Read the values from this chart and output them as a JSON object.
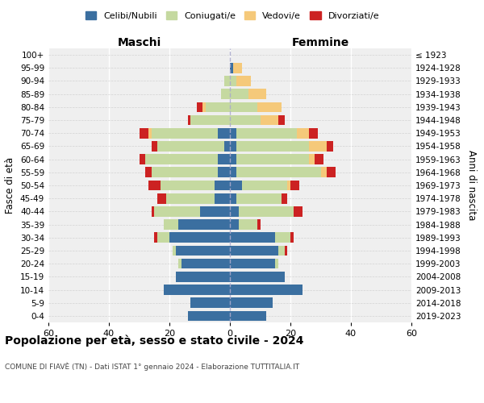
{
  "age_groups": [
    "0-4",
    "5-9",
    "10-14",
    "15-19",
    "20-24",
    "25-29",
    "30-34",
    "35-39",
    "40-44",
    "45-49",
    "50-54",
    "55-59",
    "60-64",
    "65-69",
    "70-74",
    "75-79",
    "80-84",
    "85-89",
    "90-94",
    "95-99",
    "100+"
  ],
  "birth_years": [
    "2019-2023",
    "2014-2018",
    "2009-2013",
    "2004-2008",
    "1999-2003",
    "1994-1998",
    "1989-1993",
    "1984-1988",
    "1979-1983",
    "1974-1978",
    "1969-1973",
    "1964-1968",
    "1959-1963",
    "1954-1958",
    "1949-1953",
    "1944-1948",
    "1939-1943",
    "1934-1938",
    "1929-1933",
    "1924-1928",
    "≤ 1923"
  ],
  "colors": {
    "celibi": "#3b6fa0",
    "coniugati": "#c5d9a0",
    "vedovi": "#f5c97a",
    "divorziati": "#cc2222"
  },
  "maschi": {
    "celibi": [
      14,
      13,
      22,
      18,
      16,
      18,
      20,
      17,
      10,
      5,
      5,
      4,
      4,
      2,
      4,
      0,
      0,
      0,
      0,
      0,
      0
    ],
    "coniugati": [
      0,
      0,
      0,
      0,
      1,
      1,
      4,
      5,
      15,
      16,
      18,
      22,
      24,
      22,
      22,
      13,
      8,
      3,
      2,
      0,
      0
    ],
    "vedovi": [
      0,
      0,
      0,
      0,
      0,
      0,
      0,
      0,
      0,
      0,
      0,
      0,
      0,
      0,
      1,
      0,
      1,
      0,
      0,
      0,
      0
    ],
    "divorziati": [
      0,
      0,
      0,
      0,
      0,
      0,
      1,
      0,
      1,
      3,
      4,
      2,
      2,
      2,
      3,
      1,
      2,
      0,
      0,
      0,
      0
    ]
  },
  "femmine": {
    "nubili": [
      12,
      14,
      24,
      18,
      15,
      16,
      15,
      3,
      3,
      2,
      4,
      2,
      2,
      2,
      2,
      0,
      0,
      0,
      0,
      1,
      0
    ],
    "coniugate": [
      0,
      0,
      0,
      0,
      1,
      2,
      5,
      6,
      18,
      15,
      15,
      28,
      24,
      24,
      20,
      10,
      9,
      6,
      2,
      0,
      0
    ],
    "vedove": [
      0,
      0,
      0,
      0,
      0,
      0,
      0,
      0,
      0,
      0,
      1,
      2,
      2,
      6,
      4,
      6,
      8,
      6,
      5,
      3,
      0
    ],
    "divorziate": [
      0,
      0,
      0,
      0,
      0,
      1,
      1,
      1,
      3,
      2,
      3,
      3,
      3,
      2,
      3,
      2,
      0,
      0,
      0,
      0,
      0
    ]
  },
  "xlim": 60,
  "title_main": "Popolazione per età, sesso e stato civile - 2024",
  "title_sub": "COMUNE DI FIAVÈ (TN) - Dati ISTAT 1° gennaio 2024 - Elaborazione TUTTITALIA.IT",
  "ylabel_left": "Fasce di età",
  "ylabel_right": "Anni di nascita",
  "xlabel_left": "Maschi",
  "xlabel_right": "Femmine",
  "bg_color": "#efefef",
  "legend_labels": [
    "Celibi/Nubili",
    "Coniugati/e",
    "Vedovi/e",
    "Divorziati/e"
  ]
}
